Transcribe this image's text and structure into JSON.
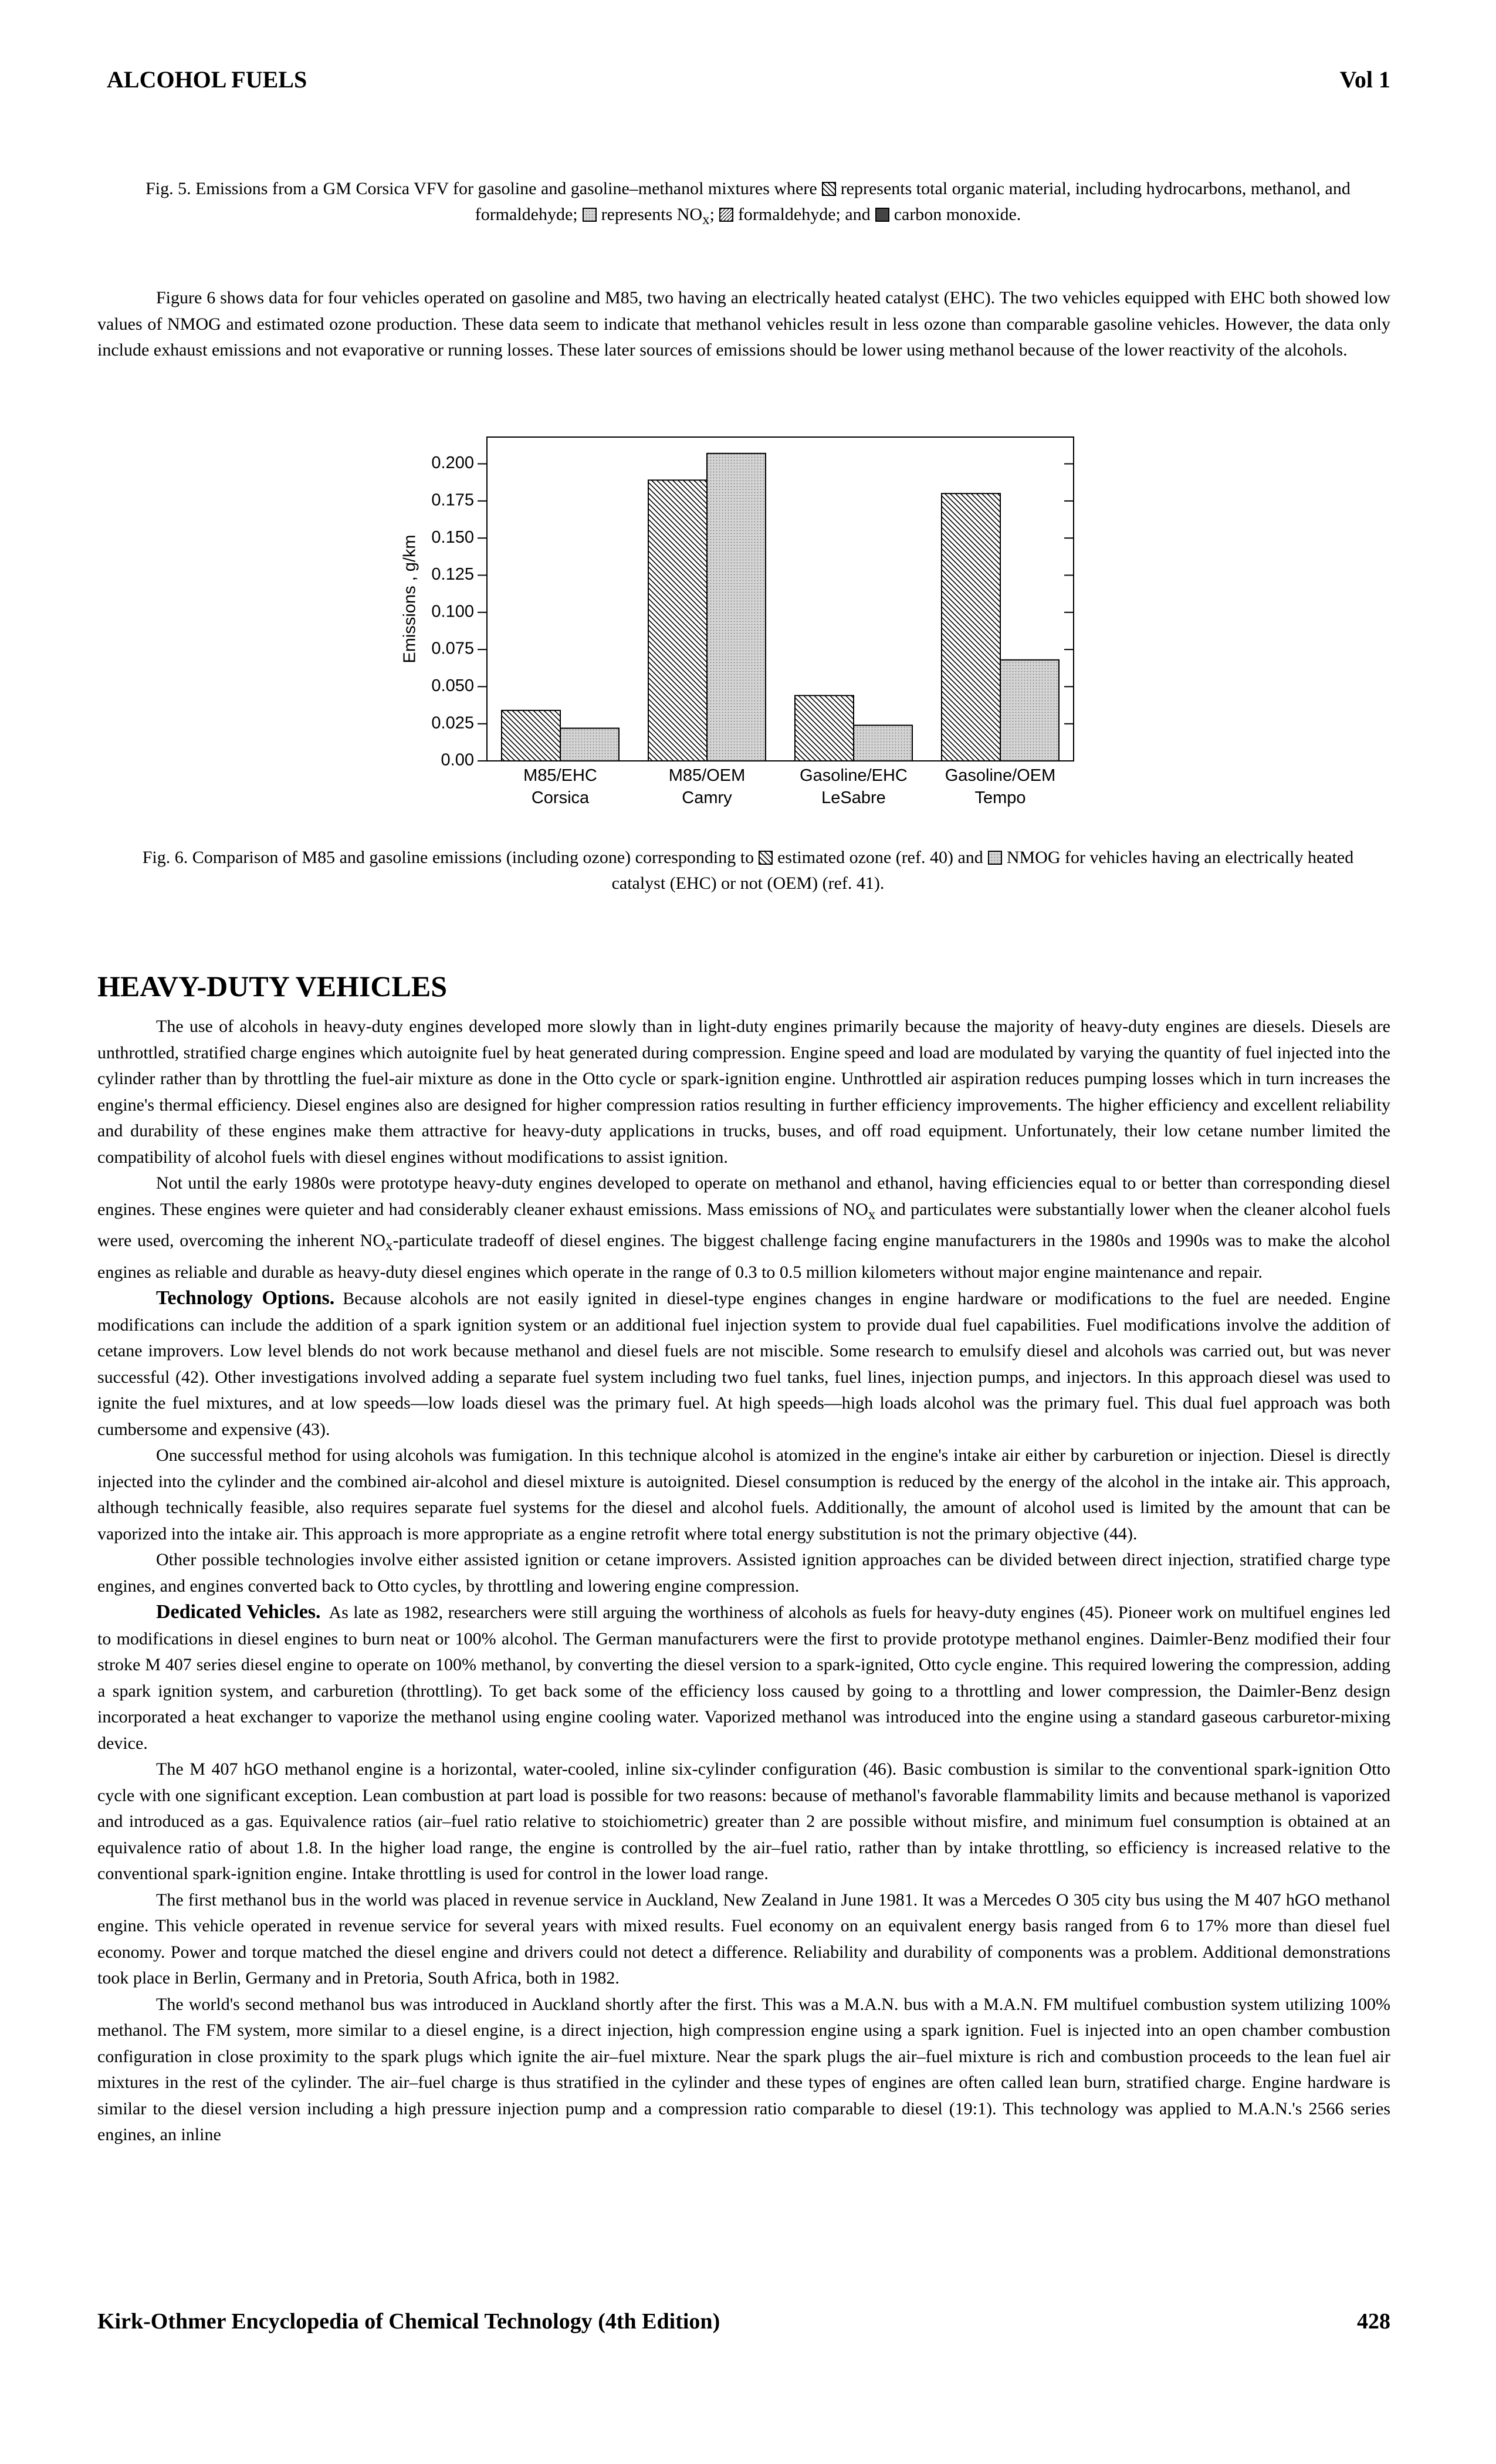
{
  "header": {
    "left": "ALCOHOL FUELS",
    "right": "Vol 1"
  },
  "fig5_caption": [
    "Fig. 5. Emissions from a GM Corsica VFV for gasoline and gasoline–methanol mixtures where",
    "represents total organic material, including hydrocarbons, methanol, and formaldehyde;",
    "represents NO",
    "x",
    ";",
    "formaldehyde; and",
    "carbon monoxide."
  ],
  "intro": "Figure 6 shows data for four vehicles operated on gasoline and M85, two having an electrically heated catalyst (EHC). The two vehicles equipped with EHC both showed low values of NMOG and estimated ozone production. These data seem to indicate that methanol vehicles result in less ozone than comparable gasoline vehicles. However, the data only include exhaust emissions and not evaporative or running losses. These later sources of emissions should be lower using methanol because of the lower reactivity of the alcohols.",
  "chart_data": {
    "type": "bar",
    "y_label": "Emissions , g/km",
    "categories": [
      "M85/EHC\nCorsica",
      "M85/OEM\nCamry",
      "Gasoline/EHC\nLeSabre",
      "Gasoline/OEM\nTempo"
    ],
    "series": [
      {
        "name": "estimated ozone (ref. 40)",
        "fill": "hatch",
        "values": [
          0.034,
          0.189,
          0.044,
          0.18
        ]
      },
      {
        "name": "NMOG",
        "fill": "dots",
        "values": [
          0.022,
          0.207,
          0.024,
          0.068
        ]
      }
    ],
    "ylim": [
      0,
      0.218
    ],
    "yticks": [
      {
        "value": 0,
        "label": "0.00"
      },
      0.025,
      {
        "value": 0.05,
        "label": "0.050"
      },
      0.075,
      {
        "value": 0.1,
        "label": "0.100"
      },
      0.125,
      {
        "value": 0.15,
        "label": "0.150"
      },
      0.175,
      {
        "value": 0.2,
        "label": "0.200"
      }
    ]
  },
  "fig6_caption": {
    "before": "Fig. 6. Comparison of M85 and gasoline emissions (including ozone) corresponding to",
    "between": "and",
    "after": "for vehicles having an electrically heated catalyst (EHC) or not (OEM) (ref. 41)."
  },
  "section_heading": "HEAVY-DUTY VEHICLES",
  "body": {
    "paragraphs": [
      {
        "runs": [
          "The use of alcohols in heavy-duty engines developed more slowly than in light-duty engines primarily because the majority of heavy-duty engines are diesels. Diesels are unthrottled, stratified charge engines which autoignite fuel by heat generated during compression. Engine speed and load are modulated by varying the quantity of fuel injected into the cylinder rather than by throttling the fuel-air mixture as done in the Otto cycle or spark-ignition engine. Unthrottled air aspiration reduces pumping losses which in turn increases the engine's thermal efficiency. Diesel engines also are designed for higher compression ratios resulting in further efficiency improvements. The higher efficiency and excellent reliability and durability of these engines make them attractive for heavy-duty applications in trucks, buses, and off road equipment. Unfortunately, their low cetane number limited the compatibility of alcohol fuels with diesel engines without modifications to assist ignition."
        ]
      },
      {
        "runs": [
          "Not until the early 1980s were prototype heavy-duty engines developed to operate on methanol and ethanol, having efficiencies equal to or better than corresponding diesel engines. These engines were quieter and had considerably cleaner exhaust emissions. Mass emissions of NO",
          {
            "sub": "x"
          },
          " and particulates were substantially lower when the cleaner alcohol fuels were used, overcoming the inherent NO",
          {
            "sub": "x"
          },
          "-particulate tradeoff of diesel engines. The biggest challenge facing engine manufacturers in the 1980s and 1990s was to make the alcohol engines as reliable and durable as heavy-duty diesel engines which operate in the range of 0.3 to 0.5 million kilometers without major engine maintenance and repair."
        ]
      },
      {
        "heading": "Technology Options.",
        "runs": [
          "Because alcohols are not easily ignited in diesel-type engines changes in engine hardware or modifications to the fuel are needed. Engine modifications can include the addition of a spark ignition system or an additional fuel injection system to provide dual fuel capabilities. Fuel modifications involve the addition of cetane improvers. Low level blends do not work because methanol and diesel fuels are not miscible. Some research to emulsify diesel and alcohols was carried out, but was never successful (42). Other investigations involved adding a separate fuel system including two fuel tanks, fuel lines, injection pumps, and injectors. In this approach diesel was used to ignite the fuel mixtures, and at low speeds—low loads diesel was the primary fuel. At high speeds—high loads alcohol was the primary fuel. This dual fuel approach was both cumbersome and expensive (43)."
        ]
      },
      {
        "runs": [
          "One successful method for using alcohols was fumigation. In this technique alcohol is atomized in the engine's intake air either by carburetion or injection. Diesel is directly injected into the cylinder and the combined air-alcohol and diesel mixture is autoignited. Diesel consumption is reduced by the energy of the alcohol in the intake air. This approach, although technically feasible, also requires separate fuel systems for the diesel and alcohol fuels. Additionally, the amount of alcohol used is limited by the amount that can be vaporized into the intake air. This approach is more appropriate as a engine retrofit where total energy substitution is not the primary objective (44)."
        ]
      },
      {
        "runs": [
          "Other possible technologies involve either assisted ignition or cetane improvers. Assisted ignition approaches can be divided between direct injection, stratified charge type engines, and engines converted back to Otto cycles, by throttling and lowering engine compression."
        ]
      },
      {
        "heading": "Dedicated Vehicles.",
        "runs": [
          "As late as 1982, researchers were still arguing the worthiness of alcohols as fuels for heavy-duty engines (45). Pioneer work on multifuel engines led to modifications in diesel engines to burn neat or 100% alcohol. The German manufacturers were the first to provide prototype methanol engines. Daimler-Benz modified their four stroke M 407 series diesel engine to operate on 100% methanol, by converting the diesel version to a spark-ignited, Otto cycle engine. This required lowering the compression, adding a spark ignition system, and carburetion (throttling). To get back some of the efficiency loss caused by going to a throttling and lower compression, the Daimler-Benz design incorporated a heat exchanger to vaporize the methanol using engine cooling water. Vaporized methanol was introduced into the engine using a standard gaseous carburetor-mixing device."
        ]
      },
      {
        "runs": [
          "The M 407 hGO methanol engine is a horizontal, water-cooled, inline six-cylinder configuration (46). Basic combustion is similar to the conventional spark-ignition Otto cycle with one significant exception. Lean combustion at part load is possible for two reasons: because of methanol's favorable flammability limits and because methanol is vaporized and introduced as a gas. Equivalence ratios (air–fuel ratio relative to stoichiometric) greater than 2 are possible without misfire, and minimum fuel consumption is obtained at an equivalence ratio of about 1.8. In the higher load range, the engine is controlled by the air–fuel ratio, rather than by intake throttling, so efficiency is increased relative to the conventional spark-ignition engine. Intake throttling is used for control in the lower load range."
        ]
      },
      {
        "runs": [
          "The first methanol bus in the world was placed in revenue service in Auckland, New Zealand in June 1981. It was a Mercedes O 305 city bus using the M 407 hGO methanol engine. This vehicle operated in revenue service for several years with mixed results. Fuel economy on an equivalent energy basis ranged from 6 to 17% more than diesel fuel economy. Power and torque matched the diesel engine and drivers could not detect a difference. Reliability and durability of components was a problem. Additional demonstrations took place in Berlin, Germany and in Pretoria, South Africa, both in 1982."
        ]
      },
      {
        "runs": [
          "The world's second methanol bus was introduced in Auckland shortly after the first. This was a M.A.N. bus with a M.A.N. FM multifuel combustion system utilizing 100% methanol. The FM system, more similar to a diesel engine, is a direct injection, high compression engine using a spark ignition. Fuel is injected into an open chamber combustion configuration in close proximity to the spark plugs which ignite the air–fuel mixture. Near the spark plugs the air–fuel mixture is rich and combustion proceeds to the lean fuel air mixtures in the rest of the cylinder. The air–fuel charge is thus stratified in the cylinder and these types of engines are often called lean burn, stratified charge. Engine hardware is similar to the diesel version including a high pressure injection pump and a compression ratio comparable to diesel (19:1). This technology was applied to M.A.N.'s 2566 series engines, an inline"
        ]
      }
    ]
  },
  "footer": {
    "left": "Kirk-Othmer Encyclopedia of Chemical Technology (4th Edition)",
    "right": "428"
  }
}
